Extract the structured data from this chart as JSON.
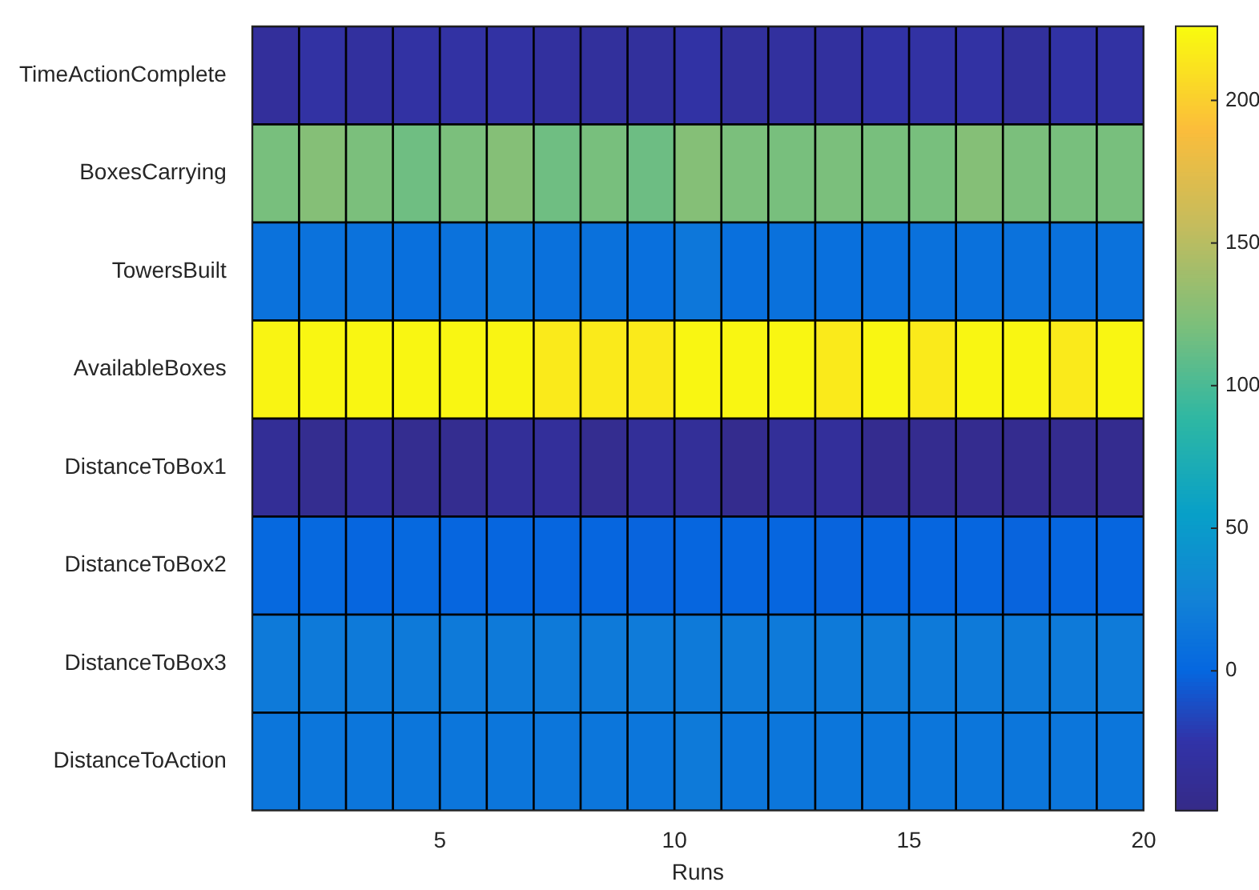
{
  "chart_data": {
    "type": "heatmap",
    "xlabel": "Runs",
    "x": [
      1.5,
      2.5,
      3.5,
      4.5,
      5.5,
      6.5,
      7.5,
      8.5,
      9.5,
      10.5,
      11.5,
      12.5,
      13.5,
      14.5,
      15.5,
      16.5,
      17.5,
      18.5,
      19.5
    ],
    "xlim": [
      1,
      20
    ],
    "xticks": [
      5,
      10,
      15,
      20
    ],
    "y_categories": [
      "TimeActionComplete",
      "BoxesCarrying",
      "TowersBuilt",
      "AvailableBoxes",
      "DistanceToBox1",
      "DistanceToBox2",
      "DistanceToBox3",
      "DistanceToAction"
    ],
    "cells": [
      [
        -34,
        -28,
        -32,
        -28,
        -28,
        -28,
        -32,
        -33,
        -33,
        -27,
        -33,
        -32,
        -32,
        -27,
        -28,
        -28,
        -33,
        -27,
        -28
      ],
      [
        120,
        126,
        121,
        116,
        121,
        126,
        116,
        120,
        115,
        126,
        121,
        120,
        121,
        120,
        120,
        126,
        121,
        120,
        120
      ],
      [
        11,
        11,
        11,
        9,
        11,
        14,
        10,
        10,
        9,
        15,
        9,
        10,
        9,
        9,
        10,
        10,
        11,
        10,
        11
      ],
      [
        222,
        223,
        223,
        223,
        223,
        222,
        216,
        216,
        216,
        223,
        223,
        223,
        216,
        223,
        216,
        223,
        223,
        216,
        223
      ],
      [
        -38,
        -42,
        -36,
        -42,
        -42,
        -36,
        -35,
        -42,
        -36,
        -36,
        -44,
        -36,
        -35,
        -43,
        -43,
        -43,
        -43,
        -43,
        -43
      ],
      [
        2,
        2,
        0,
        2,
        0,
        0,
        0,
        0,
        -1,
        0,
        0,
        0,
        -1,
        0,
        0,
        0,
        -1,
        0,
        0
      ],
      [
        18,
        18,
        18,
        18,
        18,
        18,
        18,
        18,
        19,
        18,
        18,
        18,
        18,
        19,
        18,
        18,
        18,
        18,
        19
      ],
      [
        14,
        14,
        14,
        14,
        14,
        14,
        14,
        14,
        14,
        18,
        14,
        14,
        14,
        14,
        14,
        14,
        14,
        14,
        14
      ]
    ],
    "clim": [
      -49,
      226
    ],
    "cticks": [
      0,
      50,
      100,
      150,
      200
    ],
    "grid": false
  }
}
